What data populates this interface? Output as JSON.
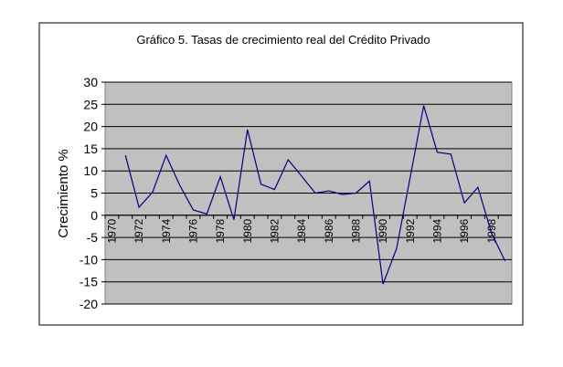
{
  "chart_data": {
    "type": "line",
    "title": "Gráfico 5. Tasas de crecimiento real del Crédito Privado",
    "y_label": "Crecimiento %",
    "categories": [
      "1970",
      null,
      "1972",
      null,
      "1974",
      null,
      "1976",
      null,
      "1978",
      null,
      "1980",
      null,
      "1982",
      null,
      "1984",
      null,
      "1986",
      null,
      "1988",
      null,
      "1990",
      null,
      "1992",
      null,
      "1994",
      null,
      "1996",
      null,
      "1998",
      null
    ],
    "series": [
      {
        "name": "Crédito Privado",
        "color": "#000080",
        "values": [
          null,
          13.5,
          1.8,
          5.2,
          13.5,
          6.8,
          1.2,
          0.3,
          8.7,
          -1,
          19.3,
          7.0,
          5.8,
          12.5,
          8.8,
          5.0,
          5.5,
          4.7,
          5.0,
          7.7,
          -15.5,
          -7.5,
          8.5,
          24.7,
          14.2,
          13.8,
          2.8,
          6.3,
          -4,
          -10.3
        ]
      }
    ],
    "ylim": [
      -20,
      30
    ],
    "yticks": [
      -20,
      -15,
      -10,
      -5,
      0,
      5,
      10,
      15,
      20,
      25,
      30
    ],
    "grid": true
  }
}
